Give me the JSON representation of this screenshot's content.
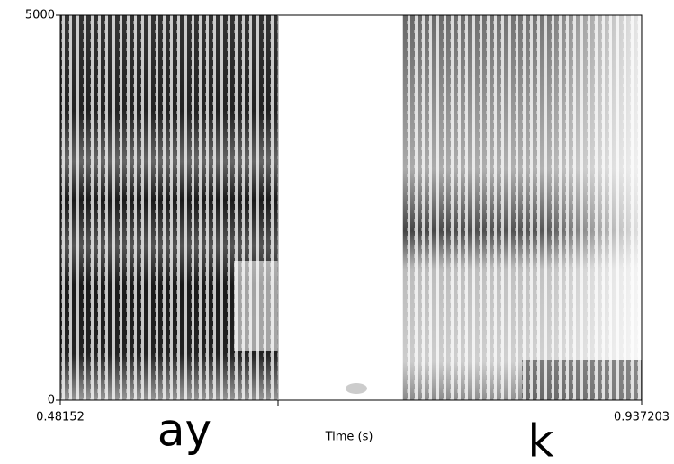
{
  "chart_data": {
    "type": "spectrogram",
    "x_label": "Time (s)",
    "xlim": [
      0.48152,
      0.937203
    ],
    "xticks": [
      0.48152,
      0.937203
    ],
    "ylim": [
      0,
      5000
    ],
    "yticks": [
      0,
      5000
    ],
    "boundaries": [
      0.65223
    ],
    "annotations": [
      "ay",
      "k"
    ]
  }
}
